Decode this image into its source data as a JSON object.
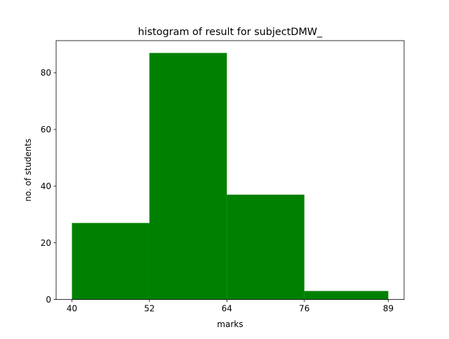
{
  "chart_data": {
    "type": "bar",
    "title": "histogram of result for subjectDMW_",
    "xlabel": "marks",
    "ylabel": "no. of students",
    "bin_edges": [
      40,
      52,
      64,
      76,
      89
    ],
    "values": [
      27,
      87,
      37,
      3
    ],
    "xticks": [
      40,
      52,
      64,
      76,
      89
    ],
    "yticks": [
      0,
      20,
      40,
      60,
      80
    ],
    "xlim": [
      37.55,
      91.45
    ],
    "ylim": [
      0,
      91.35
    ],
    "grid": false,
    "colors": {
      "bars": "#008000"
    }
  }
}
